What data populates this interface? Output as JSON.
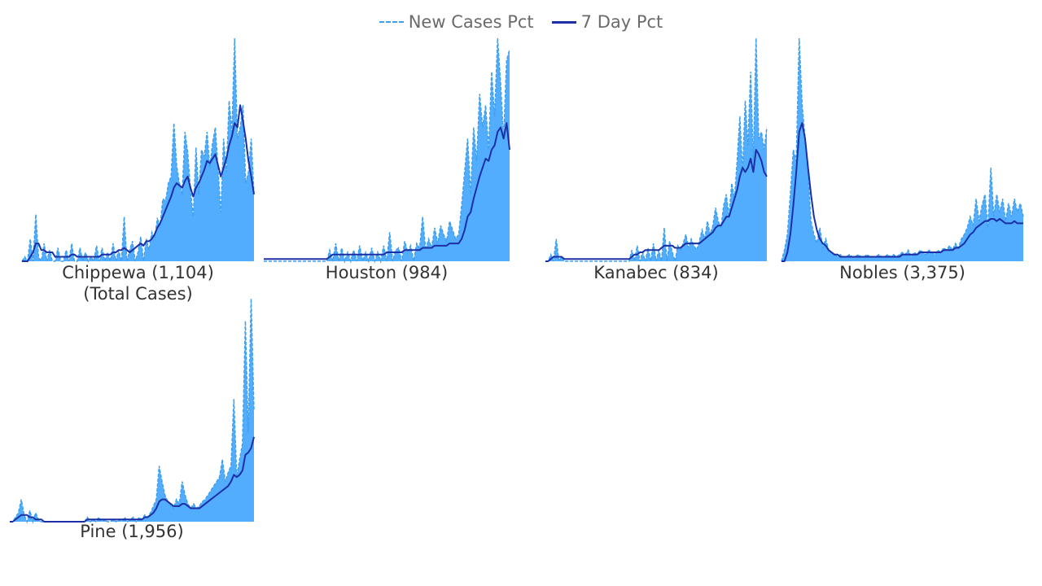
{
  "legend": {
    "new_cases_label": "New Cases Pct",
    "seven_day_label": "7 Day Pct"
  },
  "colors": {
    "area_fill": "#52adff",
    "new_cases_line": "#3fa0ec",
    "seven_day_line": "#1c2fa6",
    "label_text": "#333333",
    "legend_text": "#6b6b6b"
  },
  "chart_data": {
    "type": "area",
    "grid": false,
    "legend_position": "top-center",
    "series_names": [
      "New Cases Pct",
      "7 Day Pct"
    ],
    "panels": [
      {
        "name": "Chippewa",
        "label": "Chippewa (1,104)",
        "sublabel": "(Total Cases)",
        "peak_new_cases_pct": 1.0,
        "new_cases_pct": [
          0,
          0.02,
          0,
          0.1,
          0,
          0.21,
          0.02,
          0,
          0.08,
          0,
          0.05,
          0,
          0,
          0.06,
          0,
          0,
          0.05,
          0,
          0.08,
          0,
          0,
          0.06,
          0,
          0.04,
          0,
          0.02,
          0,
          0.07,
          0,
          0.06,
          0,
          0.04,
          0,
          0.08,
          0,
          0.05,
          0,
          0.2,
          0,
          0.05,
          0.09,
          0,
          0.04,
          0.11,
          0,
          0.1,
          0.05,
          0.13,
          0.1,
          0.19,
          0.16,
          0.28,
          0.27,
          0.35,
          0.38,
          0.62,
          0.43,
          0.35,
          0.3,
          0.58,
          0.49,
          0.32,
          0.2,
          0.51,
          0.3,
          0.5,
          0.47,
          0.58,
          0.42,
          0.53,
          0.6,
          0.41,
          0.22,
          0.55,
          0.4,
          0.72,
          0.58,
          1.0,
          0.55,
          0.6,
          0.7,
          0.35,
          0.4,
          0.55,
          0.3
        ],
        "seven_day_pct": [
          0,
          0,
          0,
          0.02,
          0.04,
          0.08,
          0.08,
          0.05,
          0.05,
          0.04,
          0.04,
          0.04,
          0.02,
          0.02,
          0.02,
          0.02,
          0.02,
          0.02,
          0.03,
          0.03,
          0.02,
          0.02,
          0.02,
          0.02,
          0.02,
          0.02,
          0.02,
          0.02,
          0.02,
          0.03,
          0.03,
          0.03,
          0.03,
          0.04,
          0.04,
          0.05,
          0.05,
          0.06,
          0.05,
          0.04,
          0.05,
          0.06,
          0.07,
          0.08,
          0.07,
          0.09,
          0.09,
          0.1,
          0.12,
          0.15,
          0.17,
          0.2,
          0.23,
          0.26,
          0.29,
          0.33,
          0.35,
          0.34,
          0.33,
          0.36,
          0.38,
          0.33,
          0.29,
          0.33,
          0.35,
          0.38,
          0.41,
          0.45,
          0.44,
          0.46,
          0.48,
          0.43,
          0.38,
          0.42,
          0.46,
          0.52,
          0.56,
          0.62,
          0.6,
          0.7,
          0.63,
          0.55,
          0.45,
          0.38,
          0.3
        ]
      },
      {
        "name": "Houston",
        "label": "Houston (984)",
        "sublabel": "",
        "peak_new_cases_pct": 1.0,
        "new_cases_pct": [
          0,
          0,
          0,
          0,
          0,
          0,
          0,
          0,
          0,
          0,
          0,
          0,
          0,
          0,
          0,
          0,
          0,
          0,
          0,
          0,
          0,
          0,
          0.05,
          0,
          0.08,
          0,
          0.06,
          0,
          0.04,
          0,
          0.05,
          0,
          0.07,
          0,
          0.04,
          0,
          0.06,
          0,
          0.04,
          0,
          0.07,
          0,
          0.13,
          0,
          0.05,
          0.06,
          0,
          0.09,
          0.04,
          0.07,
          0,
          0.08,
          0.06,
          0.2,
          0.05,
          0.1,
          0.06,
          0.15,
          0.08,
          0.16,
          0.12,
          0.09,
          0.18,
          0.14,
          0.1,
          0.12,
          0.25,
          0.4,
          0.55,
          0.3,
          0.6,
          0.45,
          0.75,
          0.6,
          0.7,
          0.5,
          0.85,
          0.65,
          1.0,
          0.8,
          0.55,
          0.9,
          0.95
        ],
        "seven_day_pct": [
          0.01,
          0.01,
          0.01,
          0.01,
          0.01,
          0.01,
          0.01,
          0.01,
          0.01,
          0.01,
          0.01,
          0.01,
          0.01,
          0.01,
          0.01,
          0.01,
          0.01,
          0.01,
          0.01,
          0.01,
          0.01,
          0.01,
          0.02,
          0.03,
          0.03,
          0.03,
          0.03,
          0.03,
          0.03,
          0.03,
          0.03,
          0.03,
          0.03,
          0.03,
          0.03,
          0.03,
          0.03,
          0.03,
          0.03,
          0.03,
          0.03,
          0.04,
          0.04,
          0.04,
          0.04,
          0.04,
          0.04,
          0.05,
          0.05,
          0.05,
          0.05,
          0.05,
          0.05,
          0.06,
          0.06,
          0.06,
          0.06,
          0.07,
          0.07,
          0.07,
          0.07,
          0.07,
          0.08,
          0.08,
          0.08,
          0.08,
          0.1,
          0.14,
          0.2,
          0.22,
          0.28,
          0.33,
          0.38,
          0.42,
          0.46,
          0.45,
          0.5,
          0.52,
          0.58,
          0.6,
          0.55,
          0.62,
          0.5
        ]
      },
      {
        "name": "Kanabec",
        "label": "Kanabec (834)",
        "sublabel": "",
        "peak_new_cases_pct": 1.0,
        "new_cases_pct": [
          0,
          0,
          0.03,
          0,
          0.1,
          0,
          0.02,
          0,
          0,
          0,
          0,
          0,
          0,
          0,
          0,
          0,
          0,
          0,
          0,
          0,
          0,
          0,
          0,
          0,
          0,
          0,
          0,
          0,
          0,
          0,
          0,
          0,
          0.05,
          0,
          0.07,
          0,
          0.04,
          0,
          0.06,
          0,
          0.08,
          0,
          0.05,
          0,
          0.15,
          0,
          0.09,
          0.04,
          0,
          0.07,
          0.05,
          0.08,
          0.12,
          0.06,
          0.1,
          0.07,
          0.05,
          0.09,
          0.14,
          0.1,
          0.18,
          0.12,
          0.16,
          0.24,
          0.18,
          0.15,
          0.25,
          0.3,
          0.2,
          0.35,
          0.28,
          0.45,
          0.65,
          0.4,
          0.72,
          0.52,
          0.85,
          0.45,
          1.0,
          0.55,
          0.58,
          0.5,
          0.6
        ],
        "seven_day_pct": [
          0,
          0,
          0.01,
          0.02,
          0.02,
          0.02,
          0.02,
          0.01,
          0.01,
          0.01,
          0.01,
          0.01,
          0.01,
          0.01,
          0.01,
          0.01,
          0.01,
          0.01,
          0.01,
          0.01,
          0.01,
          0.01,
          0.01,
          0.01,
          0.01,
          0.01,
          0.01,
          0.01,
          0.01,
          0.01,
          0.01,
          0.01,
          0.02,
          0.03,
          0.03,
          0.04,
          0.04,
          0.05,
          0.05,
          0.05,
          0.05,
          0.05,
          0.05,
          0.06,
          0.07,
          0.07,
          0.07,
          0.07,
          0.06,
          0.06,
          0.06,
          0.07,
          0.08,
          0.08,
          0.08,
          0.08,
          0.08,
          0.08,
          0.09,
          0.1,
          0.11,
          0.12,
          0.13,
          0.15,
          0.16,
          0.16,
          0.18,
          0.2,
          0.2,
          0.24,
          0.28,
          0.32,
          0.38,
          0.42,
          0.4,
          0.42,
          0.46,
          0.4,
          0.5,
          0.48,
          0.45,
          0.4,
          0.38
        ]
      },
      {
        "name": "Nobles",
        "label": "Nobles (3,375)",
        "sublabel": "",
        "peak_new_cases_pct": 1.0,
        "new_cases_pct": [
          0,
          0.05,
          0.12,
          0.3,
          0.5,
          0.45,
          1.0,
          0.7,
          0.55,
          0.4,
          0.18,
          0.12,
          0.08,
          0.15,
          0.06,
          0.1,
          0.05,
          0.04,
          0.03,
          0.02,
          0.03,
          0.02,
          0.02,
          0.03,
          0.02,
          0.02,
          0.03,
          0.02,
          0.02,
          0.03,
          0.02,
          0.02,
          0.02,
          0.03,
          0.02,
          0.02,
          0.03,
          0.02,
          0.03,
          0.02,
          0.03,
          0.04,
          0.03,
          0.05,
          0.02,
          0.04,
          0.03,
          0.05,
          0.04,
          0.03,
          0.05,
          0.04,
          0.03,
          0.05,
          0.04,
          0.06,
          0.05,
          0.07,
          0.05,
          0.08,
          0.06,
          0.1,
          0.12,
          0.15,
          0.2,
          0.16,
          0.28,
          0.18,
          0.25,
          0.3,
          0.15,
          0.42,
          0.2,
          0.3,
          0.22,
          0.28,
          0.18,
          0.26,
          0.2,
          0.28,
          0.22,
          0.26,
          0.2
        ],
        "seven_day_pct": [
          0,
          0,
          0.04,
          0.12,
          0.25,
          0.4,
          0.58,
          0.62,
          0.55,
          0.42,
          0.3,
          0.2,
          0.14,
          0.1,
          0.08,
          0.07,
          0.05,
          0.04,
          0.03,
          0.03,
          0.02,
          0.02,
          0.02,
          0.02,
          0.02,
          0.02,
          0.02,
          0.02,
          0.02,
          0.02,
          0.02,
          0.02,
          0.02,
          0.02,
          0.02,
          0.02,
          0.02,
          0.02,
          0.02,
          0.02,
          0.02,
          0.03,
          0.03,
          0.03,
          0.03,
          0.03,
          0.03,
          0.04,
          0.04,
          0.04,
          0.04,
          0.04,
          0.04,
          0.04,
          0.04,
          0.05,
          0.05,
          0.05,
          0.05,
          0.06,
          0.06,
          0.07,
          0.08,
          0.1,
          0.12,
          0.13,
          0.15,
          0.16,
          0.17,
          0.18,
          0.18,
          0.19,
          0.19,
          0.18,
          0.19,
          0.18,
          0.17,
          0.17,
          0.17,
          0.18,
          0.17,
          0.17,
          0.17
        ]
      },
      {
        "name": "Pine",
        "label": "Pine (1,956)",
        "sublabel": "",
        "peak_new_cases_pct": 1.0,
        "new_cases_pct": [
          0,
          0,
          0.02,
          0.04,
          0.1,
          0.03,
          0,
          0.05,
          0,
          0.04,
          0.01,
          0,
          0,
          0,
          0,
          0,
          0,
          0,
          0,
          0,
          0,
          0,
          0,
          0,
          0,
          0,
          0,
          0.02,
          0,
          0.01,
          0,
          0.02,
          0,
          0.01,
          0,
          0,
          0.01,
          0,
          0.01,
          0,
          0.02,
          0,
          0.01,
          0.02,
          0,
          0.02,
          0.01,
          0.03,
          0.02,
          0.04,
          0.07,
          0.1,
          0.25,
          0.18,
          0.12,
          0.09,
          0.08,
          0.06,
          0.1,
          0.08,
          0.18,
          0.12,
          0.08,
          0.06,
          0.08,
          0.06,
          0.07,
          0.09,
          0.1,
          0.12,
          0.14,
          0.16,
          0.18,
          0.2,
          0.28,
          0.18,
          0.22,
          0.25,
          0.55,
          0.2,
          0.28,
          0.35,
          0.9,
          0.4,
          1.0,
          0.5
        ],
        "seven_day_pct": [
          0,
          0,
          0.01,
          0.02,
          0.03,
          0.03,
          0.03,
          0.02,
          0.02,
          0.01,
          0.01,
          0.01,
          0,
          0,
          0,
          0,
          0,
          0,
          0,
          0,
          0,
          0,
          0,
          0,
          0,
          0,
          0,
          0.01,
          0.01,
          0.01,
          0.01,
          0.01,
          0.01,
          0.01,
          0.01,
          0.01,
          0.01,
          0.01,
          0.01,
          0.01,
          0.01,
          0.01,
          0.01,
          0.01,
          0.01,
          0.01,
          0.01,
          0.02,
          0.02,
          0.03,
          0.04,
          0.06,
          0.09,
          0.1,
          0.1,
          0.09,
          0.08,
          0.07,
          0.07,
          0.07,
          0.08,
          0.08,
          0.07,
          0.06,
          0.06,
          0.06,
          0.06,
          0.07,
          0.08,
          0.09,
          0.1,
          0.11,
          0.12,
          0.13,
          0.14,
          0.15,
          0.16,
          0.18,
          0.21,
          0.2,
          0.21,
          0.23,
          0.3,
          0.31,
          0.33,
          0.38
        ]
      }
    ]
  }
}
